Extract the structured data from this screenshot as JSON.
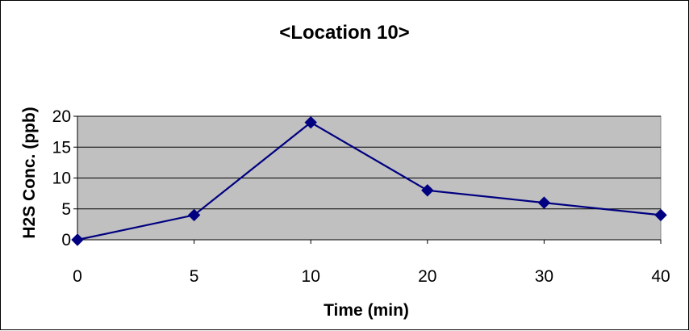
{
  "chart_data": {
    "type": "line",
    "title": "<Location 10>",
    "xlabel": "Time (min)",
    "ylabel": "H2S Conc. (ppb)",
    "categories": [
      "0",
      "5",
      "10",
      "20",
      "30",
      "40"
    ],
    "series": [
      {
        "values": [
          0,
          4,
          19,
          8,
          6,
          4
        ]
      }
    ],
    "ylim": [
      0,
      20
    ],
    "yticks": [
      "0",
      "5",
      "10",
      "15",
      "20"
    ],
    "grid": true,
    "legend": "none",
    "colors": {
      "line": "#000080",
      "marker": "#000080",
      "plot_background": "#c0c0c0",
      "gridline": "#000000"
    }
  }
}
